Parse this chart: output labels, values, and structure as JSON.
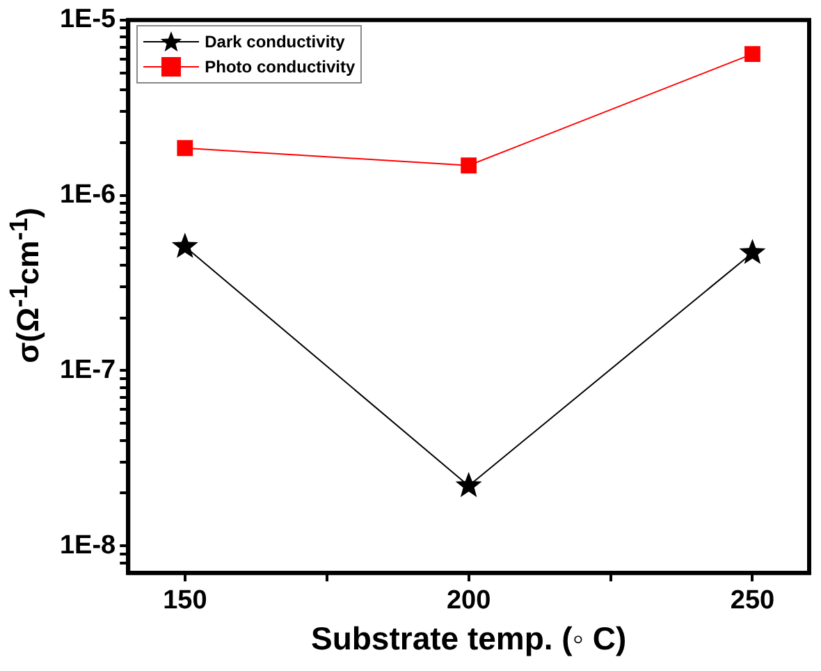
{
  "chart_data": {
    "type": "line",
    "xlabel": "Substrate temp. (◦ C)",
    "ylabel": "σ(Ω$^{-1}$cm$^{-1}$)",
    "x": [
      150,
      200,
      250
    ],
    "series": [
      {
        "name": "Dark conductivity",
        "color": "#000000",
        "marker": "star",
        "values": [
          5.1e-07,
          2.2e-08,
          4.7e-07
        ]
      },
      {
        "name": "Photo conductivity",
        "color": "#ff0000",
        "marker": "square",
        "values": [
          1.86e-06,
          1.48e-06,
          6.4e-06
        ]
      }
    ],
    "log": "y",
    "xlim": [
      140,
      260
    ],
    "ylim": [
      7.2e-09,
      1e-05
    ],
    "xticks": [
      150,
      {
        "value": 175,
        "label": null
      },
      200,
      {
        "value": 225,
        "label": null
      },
      250
    ],
    "yticks": [
      {
        "value": 8e-09,
        "label": null
      },
      {
        "value": 9e-09,
        "label": null
      },
      {
        "value": 1e-08,
        "label": "1E-8"
      },
      {
        "value": 2e-08,
        "label": null
      },
      {
        "value": 3e-08,
        "label": null
      },
      {
        "value": 4e-08,
        "label": null
      },
      {
        "value": 5e-08,
        "label": null
      },
      {
        "value": 6e-08,
        "label": null
      },
      {
        "value": 7e-08,
        "label": null
      },
      {
        "value": 8e-08,
        "label": null
      },
      {
        "value": 9e-08,
        "label": null
      },
      {
        "value": 1e-07,
        "label": "1E-7"
      },
      {
        "value": 2e-07,
        "label": null
      },
      {
        "value": 3e-07,
        "label": null
      },
      {
        "value": 4e-07,
        "label": null
      },
      {
        "value": 5e-07,
        "label": null
      },
      {
        "value": 6e-07,
        "label": null
      },
      {
        "value": 7e-07,
        "label": null
      },
      {
        "value": 8e-07,
        "label": null
      },
      {
        "value": 9e-07,
        "label": null
      },
      {
        "value": 1e-06,
        "label": "1E-6"
      },
      {
        "value": 2e-06,
        "label": null
      },
      {
        "value": 3e-06,
        "label": null
      },
      {
        "value": 4e-06,
        "label": null
      },
      {
        "value": 5e-06,
        "label": null
      },
      {
        "value": 6e-06,
        "label": null
      },
      {
        "value": 7e-06,
        "label": null
      },
      {
        "value": 8e-06,
        "label": null
      },
      {
        "value": 9e-06,
        "label": null
      },
      {
        "value": 1e-05,
        "label": "1E-5"
      }
    ],
    "grid": false,
    "legend": "top left"
  }
}
